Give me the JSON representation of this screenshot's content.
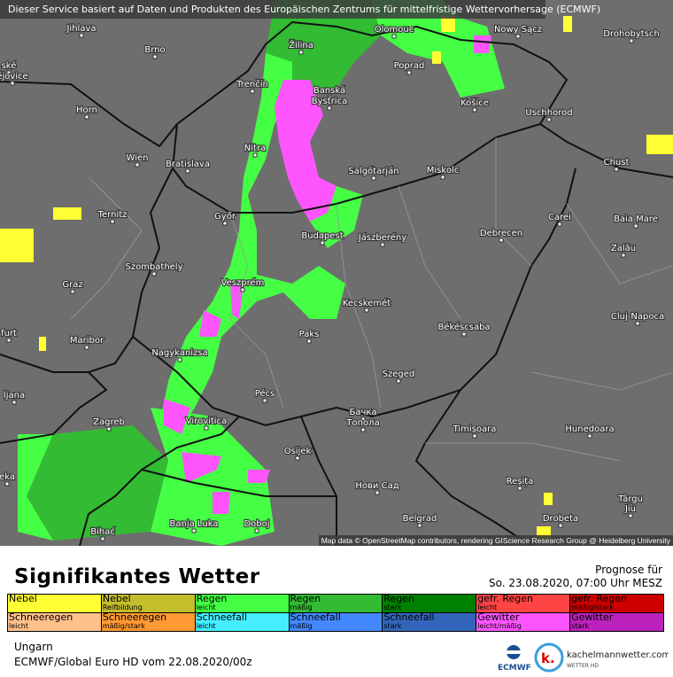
{
  "banner": "Dieser Service basiert auf Daten und Produkten des Europäischen Zentrums für mittelfristige Wettervorhersage (ECMWF)",
  "attribution": "Map data © OpenStreetMap contributors, rendering GIScience Research Group @ Heidelberg University",
  "cities": [
    "Jihlava",
    "Brno",
    "Drohobytsch",
    "Žilina",
    "Poprad",
    "Trenčín",
    "Banská",
    "Bystrica",
    "Košice",
    "Horn",
    "Uschhorod",
    "Wien",
    "Bratislava",
    "Nitra",
    "Salgótarján",
    "Miskolc",
    "Chust",
    "Ternitz",
    "Győr",
    "Budapest",
    "Jászberény",
    "Debrecen",
    "Carei",
    "Baia Mare",
    "Szombathely",
    "Zalău",
    "Graz",
    "Veszprém",
    "Kecskemét",
    "Cluj-Napoca",
    "Maribor",
    "Paks",
    "Békéscsaba",
    "Nagykanizsa",
    "Szeged",
    "Pécs",
    "Zagreb",
    "Virovitica",
    "Бачка",
    "Топола",
    "Timișoara",
    "Hunedoara",
    "Osijek",
    "Нови Сад",
    "Reșița",
    "Târgu",
    "Jiu",
    "Bihać",
    "Banja Luka",
    "Doboj",
    "Belgrad",
    "Drobeta",
    "ljana",
    "ské",
    "ějovice",
    "furt",
    "eka",
    "Olomouc",
    "Nowy Sącz"
  ],
  "colors": {
    "map_bg": "#6e6e6e",
    "rain_light": "#44ff44",
    "rain_moderate": "#33bb33",
    "thunder": "#ff55ff",
    "fog": "#ffff33"
  },
  "title": "Signifikantes Wetter",
  "forecast": {
    "label": "Prognose für",
    "datetime": "So. 23.08.2020, 07:00 Uhr MESZ"
  },
  "legend": [
    [
      {
        "t": "Nebel",
        "s": "",
        "c": "#ffff33"
      },
      {
        "t": "Nebel",
        "s": "Reifbildung",
        "c": "#c4bd2c"
      },
      {
        "t": "Regen",
        "s": "leicht",
        "c": "#44ff44"
      },
      {
        "t": "Regen",
        "s": "mäßig",
        "c": "#33bb33"
      },
      {
        "t": "Regen",
        "s": "stark",
        "c": "#008000"
      },
      {
        "t": "gefr. Regen",
        "s": "leicht",
        "c": "#ff4444"
      },
      {
        "t": "gefr. Regen",
        "s": "mäßig/stark",
        "c": "#cc0000"
      }
    ],
    [
      {
        "t": "Schneeregen",
        "s": "leicht",
        "c": "#ffc08a"
      },
      {
        "t": "Schneeregen",
        "s": "mäßig/stark",
        "c": "#ff9933"
      },
      {
        "t": "Schneefall",
        "s": "leicht",
        "c": "#44eeff"
      },
      {
        "t": "Schneefall",
        "s": "mäßig",
        "c": "#4488ff"
      },
      {
        "t": "Schneefall",
        "s": "stark",
        "c": "#3366bb"
      },
      {
        "t": "Gewitter",
        "s": "leicht/mäßig",
        "c": "#ff55ff"
      },
      {
        "t": "Gewitter",
        "s": "stark",
        "c": "#bb22bb"
      }
    ]
  ],
  "region": "Ungarn",
  "model": "ECMWF/Global Euro HD vom  22.08.2020/00z",
  "logos": {
    "ecmwf": "ECMWF",
    "kachelmann": "kachelmannwetter.com",
    "kachelmann_sub": "WETTER HD",
    "k": "k."
  }
}
